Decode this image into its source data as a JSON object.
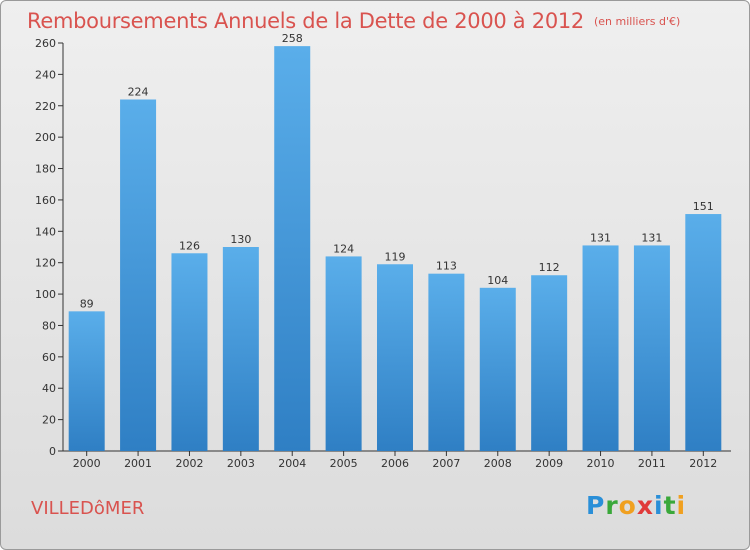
{
  "title": "Remboursements Annuels de la Dette de 2000 à 2012",
  "unit": "(en milliers d'€)",
  "city": "VILLEDôMER",
  "brand": {
    "letters": [
      "P",
      "r",
      "o",
      "x",
      "i",
      "t",
      "i"
    ],
    "colors": [
      "#2a8fd8",
      "#3aa83a",
      "#f0a020",
      "#e03a3a",
      "#2a8fd8",
      "#3aa83a",
      "#f0a020"
    ]
  },
  "colors": {
    "title": "#d9534f",
    "bar_top": "#5aaeea",
    "bar_bottom": "#2f7fc4"
  },
  "chart_data": {
    "type": "bar",
    "categories": [
      "2000",
      "2001",
      "2002",
      "2003",
      "2004",
      "2005",
      "2006",
      "2007",
      "2008",
      "2009",
      "2010",
      "2011",
      "2012"
    ],
    "values": [
      89,
      224,
      126,
      130,
      258,
      124,
      119,
      113,
      104,
      112,
      131,
      131,
      151
    ],
    "yticks": [
      "0",
      "20",
      "40",
      "60",
      "80",
      "100",
      "120",
      "140",
      "160",
      "180",
      "200",
      "220",
      "240",
      "260"
    ],
    "ylim": [
      0,
      260
    ],
    "grid": false,
    "legend": "none"
  }
}
